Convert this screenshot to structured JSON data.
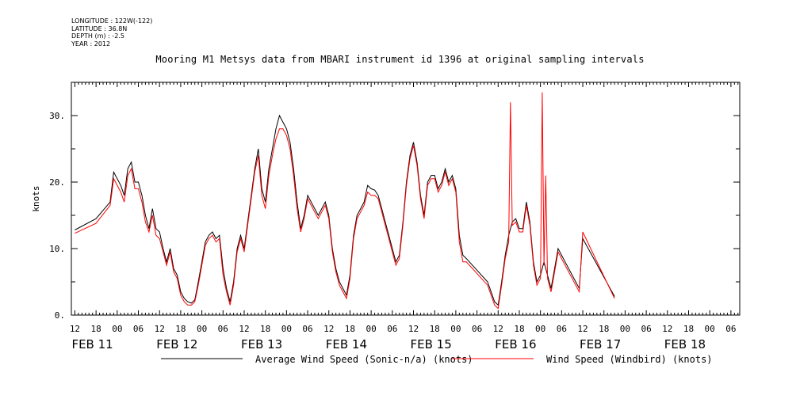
{
  "header": {
    "longitude": "LONGITUDE : 122W(-122)",
    "latitude": "LATITUDE : 36.8N",
    "depth": "DEPTH (m) : -2.5",
    "year": "YEAR : 2012"
  },
  "chart_data": {
    "type": "line",
    "title": "Mooring M1 Metsys data from MBARI instrument id 1396 at original sampling intervals",
    "ylabel": "knots",
    "xlabel": "",
    "ylim": [
      0,
      35
    ],
    "yticks": [
      0,
      10,
      20,
      30
    ],
    "ytick_labels": [
      "0.",
      "10.",
      "20.",
      "30."
    ],
    "xlim_hours": [
      12,
      192
    ],
    "x_hour_ticks": [
      {
        "h": 12,
        "label": "12"
      },
      {
        "h": 18,
        "label": "18"
      },
      {
        "h": 24,
        "label": "00"
      },
      {
        "h": 30,
        "label": "06"
      },
      {
        "h": 36,
        "label": "12"
      },
      {
        "h": 42,
        "label": "18"
      },
      {
        "h": 48,
        "label": "00"
      },
      {
        "h": 54,
        "label": "06"
      },
      {
        "h": 60,
        "label": "12"
      },
      {
        "h": 66,
        "label": "18"
      },
      {
        "h": 72,
        "label": "00"
      },
      {
        "h": 78,
        "label": "06"
      },
      {
        "h": 84,
        "label": "12"
      },
      {
        "h": 90,
        "label": "18"
      },
      {
        "h": 96,
        "label": "00"
      },
      {
        "h": 102,
        "label": "06"
      },
      {
        "h": 108,
        "label": "12"
      },
      {
        "h": 114,
        "label": "18"
      },
      {
        "h": 120,
        "label": "00"
      },
      {
        "h": 126,
        "label": "06"
      },
      {
        "h": 132,
        "label": "12"
      },
      {
        "h": 138,
        "label": "18"
      },
      {
        "h": 144,
        "label": "00"
      },
      {
        "h": 150,
        "label": "06"
      },
      {
        "h": 156,
        "label": "12"
      },
      {
        "h": 162,
        "label": "18"
      },
      {
        "h": 168,
        "label": "00"
      },
      {
        "h": 174,
        "label": "06"
      },
      {
        "h": 180,
        "label": "12"
      },
      {
        "h": 186,
        "label": "18"
      },
      {
        "h": 192,
        "label": "00"
      },
      {
        "h": 198,
        "label": "06"
      }
    ],
    "day_labels": [
      {
        "h": 12,
        "label": "FEB 11"
      },
      {
        "h": 36,
        "label": "FEB 12"
      },
      {
        "h": 60,
        "label": "FEB 13"
      },
      {
        "h": 84,
        "label": "FEB 14"
      },
      {
        "h": 108,
        "label": "FEB 15"
      },
      {
        "h": 132,
        "label": "FEB 16"
      },
      {
        "h": 156,
        "label": "FEB 17"
      },
      {
        "h": 180,
        "label": "FEB 18"
      }
    ],
    "x_note": "x values are hours from 00:00 Feb 10 2012 as labelled on the time axis",
    "series": [
      {
        "name": "Average Wind Speed (Sonic-n/a) (knots)",
        "color": "#000000",
        "points": [
          [
            12,
            12.8
          ],
          [
            18,
            14.5
          ],
          [
            22,
            17
          ],
          [
            23,
            21.5
          ],
          [
            25,
            19.5
          ],
          [
            26,
            18
          ],
          [
            27,
            22
          ],
          [
            28,
            23
          ],
          [
            29,
            20
          ],
          [
            30,
            20
          ],
          [
            31,
            18
          ],
          [
            32,
            15
          ],
          [
            33,
            13
          ],
          [
            34,
            16
          ],
          [
            35,
            13
          ],
          [
            36,
            12.5
          ],
          [
            37,
            10
          ],
          [
            38,
            8
          ],
          [
            39,
            10
          ],
          [
            40,
            7
          ],
          [
            41,
            6
          ],
          [
            42,
            3.5
          ],
          [
            43,
            2.5
          ],
          [
            44,
            2
          ],
          [
            45,
            1.8
          ],
          [
            46,
            2.3
          ],
          [
            47,
            5
          ],
          [
            48,
            8
          ],
          [
            49,
            11
          ],
          [
            50,
            12
          ],
          [
            51,
            12.5
          ],
          [
            52,
            11.5
          ],
          [
            53,
            12
          ],
          [
            54,
            7
          ],
          [
            55,
            4
          ],
          [
            56,
            2
          ],
          [
            57,
            5
          ],
          [
            58,
            10
          ],
          [
            59,
            12
          ],
          [
            60,
            10
          ],
          [
            61,
            14
          ],
          [
            62,
            18
          ],
          [
            63,
            22
          ],
          [
            64,
            25
          ],
          [
            65,
            19
          ],
          [
            66,
            17
          ],
          [
            67,
            22
          ],
          [
            68,
            25
          ],
          [
            69,
            28
          ],
          [
            70,
            30
          ],
          [
            71,
            29
          ],
          [
            72,
            28
          ],
          [
            73,
            26
          ],
          [
            74,
            22
          ],
          [
            75,
            17
          ],
          [
            76,
            13
          ],
          [
            77,
            15
          ],
          [
            78,
            18
          ],
          [
            79,
            17
          ],
          [
            80,
            16
          ],
          [
            81,
            15
          ],
          [
            82,
            16
          ],
          [
            83,
            17
          ],
          [
            84,
            15
          ],
          [
            85,
            10
          ],
          [
            86,
            7
          ],
          [
            87,
            5
          ],
          [
            88,
            4
          ],
          [
            89,
            3
          ],
          [
            90,
            6
          ],
          [
            91,
            12
          ],
          [
            92,
            15
          ],
          [
            93,
            16
          ],
          [
            94,
            17
          ],
          [
            95,
            19.5
          ],
          [
            96,
            19
          ],
          [
            97,
            18.8
          ],
          [
            98,
            18
          ],
          [
            99,
            16
          ],
          [
            100,
            14
          ],
          [
            101,
            12
          ],
          [
            102,
            10
          ],
          [
            103,
            8
          ],
          [
            104,
            9
          ],
          [
            105,
            14
          ],
          [
            106,
            20
          ],
          [
            107,
            24
          ],
          [
            108,
            26
          ],
          [
            109,
            23
          ],
          [
            110,
            18
          ],
          [
            111,
            15
          ],
          [
            112,
            20
          ],
          [
            113,
            21
          ],
          [
            114,
            21
          ],
          [
            115,
            19
          ],
          [
            116,
            20
          ],
          [
            117,
            22
          ],
          [
            118,
            20
          ],
          [
            119,
            21
          ],
          [
            120,
            19
          ],
          [
            121,
            12
          ],
          [
            122,
            9
          ],
          [
            123,
            8.5
          ],
          [
            129,
            5
          ],
          [
            130,
            3.5
          ],
          [
            131,
            2
          ],
          [
            132,
            1.5
          ],
          [
            133,
            5
          ],
          [
            134,
            9
          ],
          [
            135,
            12
          ],
          [
            136,
            14
          ],
          [
            137,
            14.5
          ],
          [
            138,
            13
          ],
          [
            139,
            13
          ],
          [
            140,
            17
          ],
          [
            141,
            14
          ],
          [
            142,
            8
          ],
          [
            143,
            5
          ],
          [
            144,
            6
          ],
          [
            145,
            8
          ],
          [
            146,
            6
          ],
          [
            147,
            4
          ],
          [
            148,
            7
          ],
          [
            149,
            10
          ],
          [
            150,
            9
          ],
          [
            151,
            8
          ],
          [
            152,
            7
          ],
          [
            153,
            6
          ],
          [
            154,
            5
          ],
          [
            155,
            4
          ],
          [
            156,
            11.5
          ],
          [
            165,
            2.8
          ]
        ]
      },
      {
        "name": "Wind Speed (Windbird) (knots)",
        "color": "#ff0000",
        "points": [
          [
            12,
            12.3
          ],
          [
            18,
            13.8
          ],
          [
            22,
            16.5
          ],
          [
            23,
            20.5
          ],
          [
            25,
            18.5
          ],
          [
            26,
            17
          ],
          [
            27,
            21
          ],
          [
            28,
            22
          ],
          [
            29,
            19
          ],
          [
            30,
            19
          ],
          [
            31,
            17
          ],
          [
            32,
            14
          ],
          [
            33,
            12.5
          ],
          [
            34,
            15
          ],
          [
            35,
            12
          ],
          [
            36,
            11.5
          ],
          [
            37,
            9.5
          ],
          [
            38,
            7.5
          ],
          [
            39,
            9.5
          ],
          [
            40,
            6.5
          ],
          [
            41,
            5.5
          ],
          [
            42,
            3
          ],
          [
            43,
            2
          ],
          [
            44,
            1.5
          ],
          [
            45,
            1.5
          ],
          [
            46,
            2
          ],
          [
            47,
            4.5
          ],
          [
            48,
            7.5
          ],
          [
            49,
            10.5
          ],
          [
            50,
            11.5
          ],
          [
            51,
            12
          ],
          [
            52,
            11
          ],
          [
            53,
            11.5
          ],
          [
            54,
            6
          ],
          [
            55,
            3.5
          ],
          [
            56,
            1.5
          ],
          [
            57,
            4.5
          ],
          [
            58,
            9.5
          ],
          [
            59,
            11.5
          ],
          [
            60,
            9.5
          ],
          [
            61,
            13.5
          ],
          [
            62,
            17.5
          ],
          [
            63,
            21.5
          ],
          [
            64,
            24
          ],
          [
            65,
            18
          ],
          [
            66,
            16
          ],
          [
            67,
            21
          ],
          [
            68,
            24
          ],
          [
            69,
            26.5
          ],
          [
            70,
            28
          ],
          [
            71,
            28
          ],
          [
            72,
            27
          ],
          [
            73,
            25
          ],
          [
            74,
            21
          ],
          [
            75,
            16
          ],
          [
            76,
            12.5
          ],
          [
            77,
            14.5
          ],
          [
            78,
            17.5
          ],
          [
            79,
            16.5
          ],
          [
            80,
            15.5
          ],
          [
            81,
            14.5
          ],
          [
            82,
            15.5
          ],
          [
            83,
            16.5
          ],
          [
            84,
            14.5
          ],
          [
            85,
            9.5
          ],
          [
            86,
            6.5
          ],
          [
            87,
            4.5
          ],
          [
            88,
            3.5
          ],
          [
            89,
            2.5
          ],
          [
            90,
            5.5
          ],
          [
            91,
            11.5
          ],
          [
            92,
            14.5
          ],
          [
            93,
            15.5
          ],
          [
            94,
            16.5
          ],
          [
            95,
            18.5
          ],
          [
            96,
            18
          ],
          [
            97,
            18
          ],
          [
            98,
            17.5
          ],
          [
            99,
            15.5
          ],
          [
            100,
            13.5
          ],
          [
            101,
            11.5
          ],
          [
            102,
            9.5
          ],
          [
            103,
            7.5
          ],
          [
            104,
            8.5
          ],
          [
            105,
            13.5
          ],
          [
            106,
            19.5
          ],
          [
            107,
            23.5
          ],
          [
            108,
            25.5
          ],
          [
            109,
            22.5
          ],
          [
            110,
            17.5
          ],
          [
            111,
            14.5
          ],
          [
            112,
            19.5
          ],
          [
            113,
            20.5
          ],
          [
            114,
            20.5
          ],
          [
            115,
            18.5
          ],
          [
            116,
            19.5
          ],
          [
            117,
            21.5
          ],
          [
            118,
            19.5
          ],
          [
            119,
            20.5
          ],
          [
            120,
            18.5
          ],
          [
            121,
            11
          ],
          [
            122,
            8
          ],
          [
            123,
            8
          ],
          [
            129,
            4.5
          ],
          [
            130,
            3
          ],
          [
            131,
            1.5
          ],
          [
            132,
            1
          ],
          [
            133,
            4.5
          ],
          [
            134,
            8.5
          ],
          [
            135,
            11
          ],
          [
            135.5,
            32
          ],
          [
            136,
            13.5
          ],
          [
            137,
            14
          ],
          [
            138,
            12.5
          ],
          [
            139,
            12.5
          ],
          [
            140,
            16.5
          ],
          [
            141,
            13.5
          ],
          [
            142,
            7.5
          ],
          [
            143,
            4.5
          ],
          [
            144,
            5.5
          ],
          [
            144.5,
            33.5
          ],
          [
            145,
            7.5
          ],
          [
            145.5,
            21
          ],
          [
            146,
            5.5
          ],
          [
            147,
            3.5
          ],
          [
            148,
            6.5
          ],
          [
            149,
            9.5
          ],
          [
            150,
            8.5
          ],
          [
            151,
            7.5
          ],
          [
            152,
            6.5
          ],
          [
            153,
            5.5
          ],
          [
            154,
            4.5
          ],
          [
            155,
            3.5
          ],
          [
            156,
            12.5
          ],
          [
            165,
            2.5
          ]
        ]
      }
    ],
    "legend_placement": "bottom",
    "grid": false
  }
}
